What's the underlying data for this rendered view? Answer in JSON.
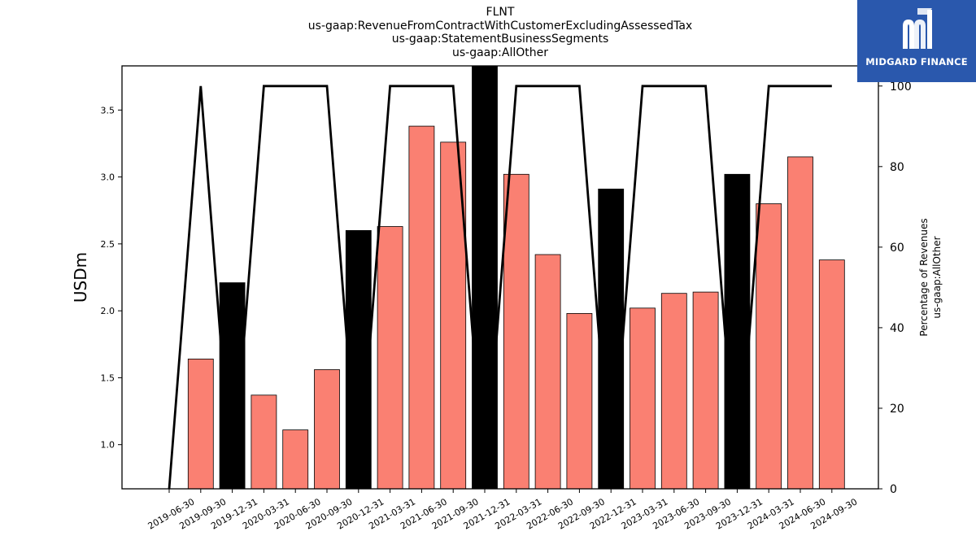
{
  "title_lines": [
    "FLNT",
    "us-gaap:RevenueFromContractWithCustomerExcludingAssessedTax",
    "us-gaap:StatementBusinessSegments",
    "us-gaap:AllOther"
  ],
  "logo": {
    "text": "MIDGARD FINANCE",
    "icon": "midgard-logo-icon",
    "background": "#2a58ad"
  },
  "chart_data": {
    "type": "bar",
    "ylabel": "USDm",
    "y2label_lines": [
      "Percentage of Revenues",
      "us-gaap:AllOther"
    ],
    "ylim": [
      0.67,
      3.83
    ],
    "y2lim": [
      0,
      105
    ],
    "yticks": [
      "1.0",
      "1.5",
      "2.0",
      "2.5",
      "3.0",
      "3.5"
    ],
    "y2ticks": [
      "0",
      "20",
      "40",
      "60",
      "80",
      "100"
    ],
    "categories": [
      "2019-06-30",
      "2019-09-30",
      "2019-12-31",
      "2020-03-31",
      "2020-06-30",
      "2020-09-30",
      "2020-12-31",
      "2021-03-31",
      "2021-06-30",
      "2021-09-30",
      "2021-12-31",
      "2022-03-31",
      "2022-06-30",
      "2022-09-30",
      "2022-12-31",
      "2023-03-31",
      "2023-06-30",
      "2023-09-30",
      "2023-12-31",
      "2024-03-31",
      "2024-06-30",
      "2024-09-30"
    ],
    "bars": [
      {
        "x": "2019-09-30",
        "value": 1.64,
        "color": "#fa8072"
      },
      {
        "x": "2019-12-31",
        "value": 2.21,
        "color": "#000000"
      },
      {
        "x": "2020-03-31",
        "value": 1.37,
        "color": "#fa8072"
      },
      {
        "x": "2020-06-30",
        "value": 1.11,
        "color": "#fa8072"
      },
      {
        "x": "2020-09-30",
        "value": 1.56,
        "color": "#fa8072"
      },
      {
        "x": "2020-12-31",
        "value": 2.6,
        "color": "#000000"
      },
      {
        "x": "2021-03-31",
        "value": 2.63,
        "color": "#fa8072"
      },
      {
        "x": "2021-06-30",
        "value": 3.38,
        "color": "#fa8072"
      },
      {
        "x": "2021-09-30",
        "value": 3.26,
        "color": "#fa8072"
      },
      {
        "x": "2021-12-31",
        "value": 3.83,
        "color": "#000000"
      },
      {
        "x": "2022-03-31",
        "value": 3.02,
        "color": "#fa8072"
      },
      {
        "x": "2022-06-30",
        "value": 2.42,
        "color": "#fa8072"
      },
      {
        "x": "2022-09-30",
        "value": 1.98,
        "color": "#fa8072"
      },
      {
        "x": "2022-12-31",
        "value": 2.91,
        "color": "#000000"
      },
      {
        "x": "2023-03-31",
        "value": 2.02,
        "color": "#fa8072"
      },
      {
        "x": "2023-06-30",
        "value": 2.13,
        "color": "#fa8072"
      },
      {
        "x": "2023-09-30",
        "value": 2.14,
        "color": "#fa8072"
      },
      {
        "x": "2023-12-31",
        "value": 3.02,
        "color": "#000000"
      },
      {
        "x": "2024-03-31",
        "value": 2.8,
        "color": "#fa8072"
      },
      {
        "x": "2024-06-30",
        "value": 3.15,
        "color": "#fa8072"
      },
      {
        "x": "2024-09-30",
        "value": 2.38,
        "color": "#fa8072"
      }
    ],
    "line_series": {
      "axis": "right",
      "color": "#000000",
      "x": [
        "2019-06-30",
        "2019-09-30",
        "2019-12-31",
        "2020-03-31",
        "2020-06-30",
        "2020-09-30",
        "2020-12-31",
        "2021-03-31",
        "2021-06-30",
        "2021-09-30",
        "2021-12-31",
        "2022-03-31",
        "2022-06-30",
        "2022-09-30",
        "2022-12-31",
        "2023-03-31",
        "2023-06-30",
        "2023-09-30",
        "2023-12-31",
        "2024-03-31",
        "2024-06-30",
        "2024-09-30"
      ],
      "values": [
        0,
        100,
        0,
        100,
        100,
        100,
        0,
        100,
        100,
        100,
        0,
        100,
        100,
        100,
        0,
        100,
        100,
        100,
        0,
        100,
        100,
        100
      ]
    },
    "grid": false
  }
}
